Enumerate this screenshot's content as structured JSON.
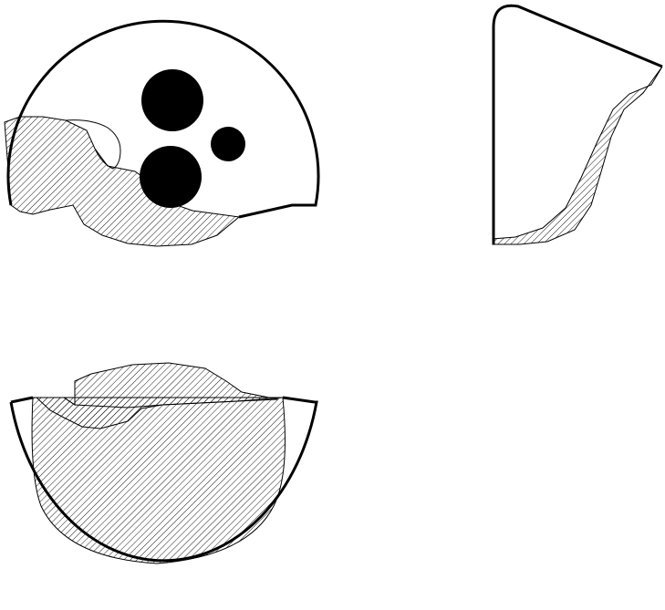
{
  "figure": {
    "views": [
      {
        "id": "top-view",
        "hatched": true,
        "holes": 3
      },
      {
        "id": "side-view",
        "hatched": true
      },
      {
        "id": "bottom-view",
        "hatched": true
      }
    ],
    "colors": {
      "outline": "#000000",
      "hatch": "#000000",
      "background": "#ffffff",
      "holes": "#000000"
    }
  }
}
